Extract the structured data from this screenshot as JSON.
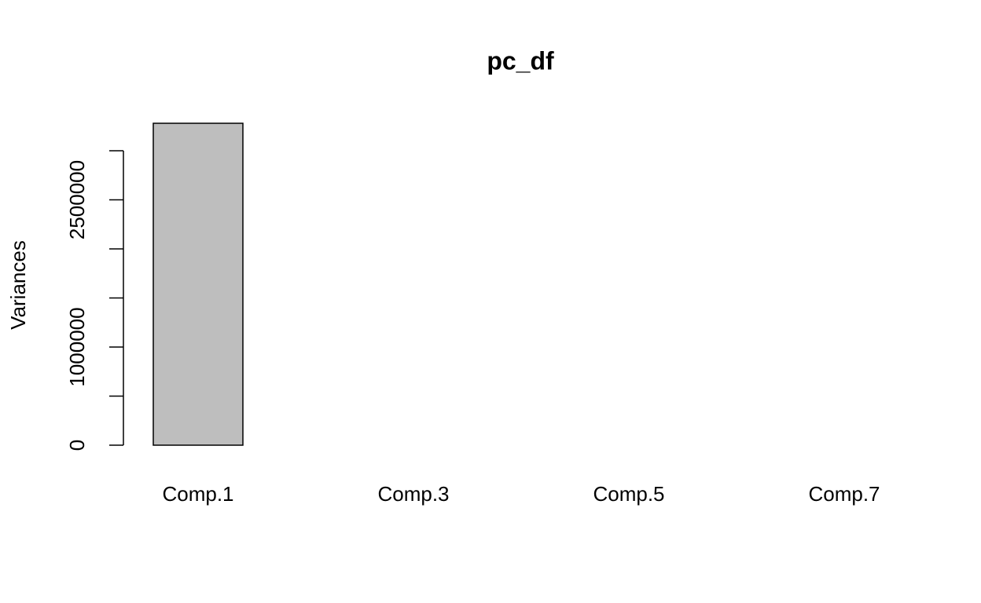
{
  "chart_data": {
    "type": "bar",
    "title": "pc_df",
    "y_label": "Variances",
    "categories": [
      "Comp.1",
      null,
      "Comp.3",
      null,
      "Comp.5",
      null,
      "Comp.7"
    ],
    "values": [
      3280000,
      0,
      0,
      0,
      0,
      0,
      0
    ],
    "color": "#bebebe",
    "ylim": [
      0,
      3280000
    ],
    "yticks": [
      0,
      {
        "value": 500000,
        "label": null
      },
      1000000,
      {
        "value": 1500000,
        "label": null
      },
      {
        "value": 2000000,
        "label": null
      },
      2500000,
      {
        "value": 3000000,
        "label": null
      }
    ]
  }
}
